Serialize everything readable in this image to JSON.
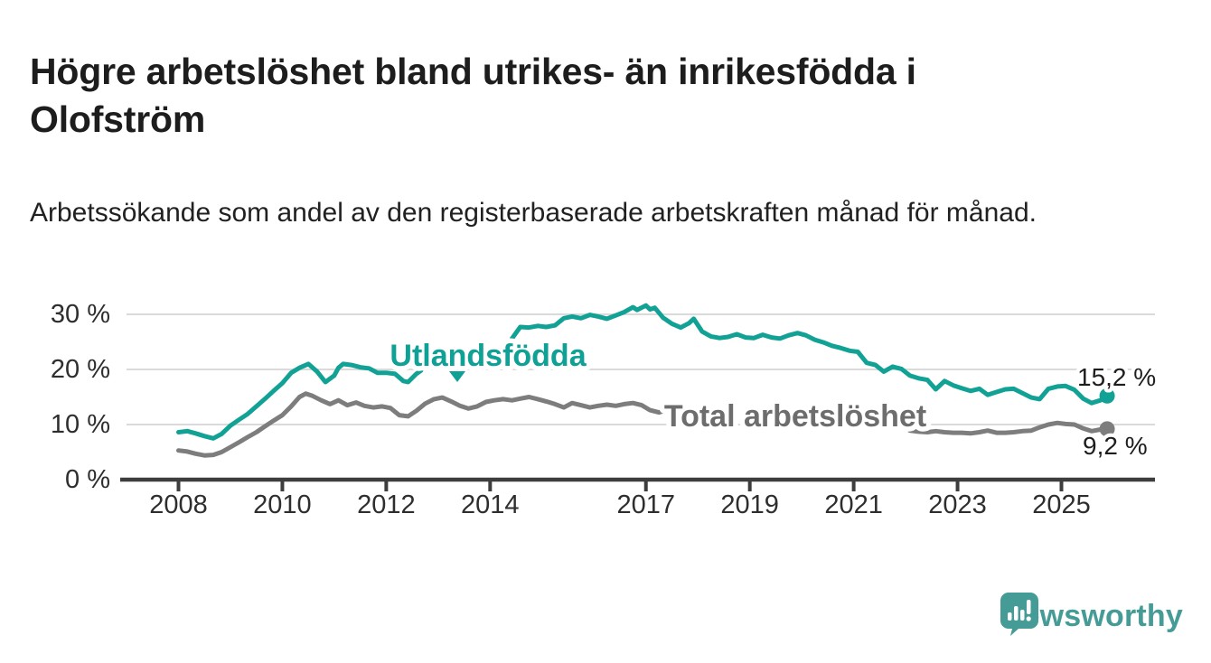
{
  "header": {
    "title": "Högre arbetslöshet bland utrikes- än inrikesfödda i Olofström",
    "subtitle": "Arbetssökande som andel av den registerbaserade arbetskraften månad för månad."
  },
  "colors": {
    "teal_line": "#12a195",
    "teal_label": "#0fa096",
    "gray_line": "#7d7d7d",
    "gray_label": "#6d6d6d",
    "axis": "#3d3d3d",
    "grid": "#dadada",
    "tick_text": "#2e2e2e",
    "logo_teal": "#459b96"
  },
  "footer": {
    "brand": "Newsworthy",
    "logo_icon": "newsworthy-speech-bubble-bar-chart-icon"
  },
  "chart_data": {
    "type": "line",
    "unit": "%",
    "title": "Högre arbetslöshet bland utrikes- än inrikesfödda i Olofström",
    "subtitle": "Arbetssökande som andel av den registerbaserade arbetskraften månad för månad.",
    "x_range": [
      2008.0,
      2025.88
    ],
    "ylim": [
      0,
      33
    ],
    "grid": "horizontal",
    "x_axis": {
      "ticks": [
        2008,
        2010,
        2012,
        2014,
        2017,
        2019,
        2021,
        2023,
        2025
      ]
    },
    "y_axis": {
      "ticks": [
        0,
        10,
        20,
        30
      ],
      "tick_labels": [
        "0 %",
        "10 %",
        "20 %",
        "30 %"
      ]
    },
    "series": [
      {
        "name": "Utlandsfödda",
        "color": "#12a195",
        "end_value": 15.2,
        "end_label": "15,2 %",
        "note": "line hidden behind inline series label between 2012.7 and 2014.4",
        "segments": [
          [
            [
              2008.0,
              8.6
            ],
            [
              2008.17,
              8.8
            ],
            [
              2008.33,
              8.4
            ],
            [
              2008.5,
              7.9
            ],
            [
              2008.67,
              7.5
            ],
            [
              2008.83,
              8.3
            ],
            [
              2009.0,
              9.8
            ],
            [
              2009.17,
              10.9
            ],
            [
              2009.33,
              11.9
            ],
            [
              2009.5,
              13.3
            ],
            [
              2009.67,
              14.7
            ],
            [
              2009.83,
              16.1
            ],
            [
              2010.0,
              17.5
            ],
            [
              2010.17,
              19.4
            ],
            [
              2010.33,
              20.3
            ],
            [
              2010.5,
              21.0
            ],
            [
              2010.67,
              19.6
            ],
            [
              2010.83,
              17.7
            ],
            [
              2011.0,
              18.9
            ],
            [
              2011.08,
              20.3
            ],
            [
              2011.17,
              21.0
            ],
            [
              2011.33,
              20.8
            ],
            [
              2011.5,
              20.4
            ],
            [
              2011.67,
              20.2
            ],
            [
              2011.83,
              19.4
            ],
            [
              2012.0,
              19.4
            ],
            [
              2012.17,
              19.2
            ],
            [
              2012.33,
              17.9
            ],
            [
              2012.42,
              17.7
            ],
            [
              2012.58,
              19.2
            ],
            [
              2012.67,
              19.8
            ]
          ],
          [
            [
              2014.42,
              25.6
            ],
            [
              2014.58,
              27.7
            ],
            [
              2014.75,
              27.6
            ],
            [
              2014.92,
              27.9
            ],
            [
              2015.08,
              27.7
            ],
            [
              2015.25,
              28.0
            ],
            [
              2015.42,
              29.3
            ],
            [
              2015.58,
              29.6
            ],
            [
              2015.75,
              29.3
            ],
            [
              2015.92,
              29.9
            ],
            [
              2016.08,
              29.6
            ],
            [
              2016.25,
              29.2
            ],
            [
              2016.42,
              29.8
            ],
            [
              2016.58,
              30.4
            ],
            [
              2016.75,
              31.3
            ],
            [
              2016.83,
              30.8
            ],
            [
              2017.0,
              31.6
            ],
            [
              2017.08,
              30.9
            ],
            [
              2017.17,
              31.2
            ],
            [
              2017.33,
              29.4
            ],
            [
              2017.5,
              28.3
            ],
            [
              2017.67,
              27.6
            ],
            [
              2017.83,
              28.4
            ],
            [
              2017.92,
              29.2
            ],
            [
              2018.08,
              26.9
            ],
            [
              2018.25,
              26.0
            ],
            [
              2018.42,
              25.7
            ],
            [
              2018.58,
              25.9
            ],
            [
              2018.75,
              26.4
            ],
            [
              2018.92,
              25.8
            ],
            [
              2019.08,
              25.7
            ],
            [
              2019.25,
              26.3
            ],
            [
              2019.42,
              25.8
            ],
            [
              2019.58,
              25.6
            ],
            [
              2019.75,
              26.2
            ],
            [
              2019.92,
              26.6
            ],
            [
              2020.08,
              26.2
            ],
            [
              2020.25,
              25.4
            ],
            [
              2020.42,
              24.9
            ],
            [
              2020.58,
              24.3
            ],
            [
              2020.75,
              23.9
            ],
            [
              2020.92,
              23.4
            ],
            [
              2021.08,
              23.2
            ],
            [
              2021.25,
              21.2
            ],
            [
              2021.42,
              20.8
            ],
            [
              2021.58,
              19.6
            ],
            [
              2021.75,
              20.5
            ],
            [
              2021.92,
              20.1
            ],
            [
              2022.08,
              18.9
            ],
            [
              2022.25,
              18.4
            ],
            [
              2022.42,
              18.1
            ],
            [
              2022.58,
              16.4
            ],
            [
              2022.75,
              17.9
            ],
            [
              2022.92,
              17.1
            ],
            [
              2023.08,
              16.6
            ],
            [
              2023.25,
              16.1
            ],
            [
              2023.42,
              16.5
            ],
            [
              2023.58,
              15.4
            ],
            [
              2023.75,
              15.9
            ],
            [
              2023.92,
              16.4
            ],
            [
              2024.08,
              16.5
            ],
            [
              2024.25,
              15.7
            ],
            [
              2024.42,
              14.9
            ],
            [
              2024.58,
              14.6
            ],
            [
              2024.75,
              16.5
            ],
            [
              2024.92,
              16.9
            ],
            [
              2025.08,
              17.0
            ],
            [
              2025.25,
              16.3
            ],
            [
              2025.42,
              14.7
            ],
            [
              2025.58,
              13.9
            ],
            [
              2025.75,
              14.4
            ],
            [
              2025.88,
              15.2
            ]
          ]
        ]
      },
      {
        "name": "Total arbetslöshet",
        "color": "#7d7d7d",
        "end_value": 9.2,
        "end_label": "9,2 %",
        "note": "line hidden behind inline series label between 2017.6 and 2022.1",
        "segments": [
          [
            [
              2008.0,
              5.3
            ],
            [
              2008.17,
              5.1
            ],
            [
              2008.33,
              4.7
            ],
            [
              2008.5,
              4.4
            ],
            [
              2008.67,
              4.5
            ],
            [
              2008.83,
              5.0
            ],
            [
              2009.0,
              5.9
            ],
            [
              2009.17,
              6.8
            ],
            [
              2009.33,
              7.7
            ],
            [
              2009.5,
              8.6
            ],
            [
              2009.67,
              9.7
            ],
            [
              2009.83,
              10.7
            ],
            [
              2010.0,
              11.7
            ],
            [
              2010.17,
              13.3
            ],
            [
              2010.33,
              15.0
            ],
            [
              2010.45,
              15.6
            ],
            [
              2010.58,
              15.2
            ],
            [
              2010.75,
              14.4
            ],
            [
              2010.92,
              13.7
            ],
            [
              2011.08,
              14.4
            ],
            [
              2011.25,
              13.5
            ],
            [
              2011.42,
              14.0
            ],
            [
              2011.58,
              13.4
            ],
            [
              2011.75,
              13.1
            ],
            [
              2011.92,
              13.3
            ],
            [
              2012.08,
              13.0
            ],
            [
              2012.25,
              11.7
            ],
            [
              2012.42,
              11.5
            ],
            [
              2012.58,
              12.5
            ],
            [
              2012.75,
              13.8
            ],
            [
              2012.92,
              14.6
            ],
            [
              2013.08,
              14.9
            ],
            [
              2013.25,
              14.2
            ],
            [
              2013.42,
              13.4
            ],
            [
              2013.58,
              12.9
            ],
            [
              2013.75,
              13.3
            ],
            [
              2013.92,
              14.1
            ],
            [
              2014.08,
              14.4
            ],
            [
              2014.25,
              14.6
            ],
            [
              2014.42,
              14.4
            ],
            [
              2014.58,
              14.7
            ],
            [
              2014.75,
              15.0
            ],
            [
              2014.92,
              14.6
            ],
            [
              2015.08,
              14.2
            ],
            [
              2015.25,
              13.7
            ],
            [
              2015.42,
              13.1
            ],
            [
              2015.58,
              13.9
            ],
            [
              2015.75,
              13.5
            ],
            [
              2015.92,
              13.1
            ],
            [
              2016.08,
              13.4
            ],
            [
              2016.25,
              13.6
            ],
            [
              2016.42,
              13.4
            ],
            [
              2016.58,
              13.7
            ],
            [
              2016.75,
              13.9
            ],
            [
              2016.92,
              13.5
            ],
            [
              2017.08,
              12.6
            ],
            [
              2017.25,
              12.2
            ],
            [
              2017.42,
              12.7
            ],
            [
              2017.58,
              11.6
            ]
          ],
          [
            [
              2022.08,
              8.9
            ],
            [
              2022.25,
              8.7
            ],
            [
              2022.42,
              8.6
            ],
            [
              2022.58,
              8.8
            ],
            [
              2022.75,
              8.6
            ],
            [
              2022.92,
              8.5
            ],
            [
              2023.08,
              8.5
            ],
            [
              2023.25,
              8.4
            ],
            [
              2023.42,
              8.6
            ],
            [
              2023.58,
              8.9
            ],
            [
              2023.75,
              8.5
            ],
            [
              2023.92,
              8.5
            ],
            [
              2024.08,
              8.6
            ],
            [
              2024.25,
              8.8
            ],
            [
              2024.42,
              8.9
            ],
            [
              2024.58,
              9.5
            ],
            [
              2024.75,
              10.0
            ],
            [
              2024.92,
              10.3
            ],
            [
              2025.08,
              10.1
            ],
            [
              2025.25,
              10.0
            ],
            [
              2025.42,
              9.3
            ],
            [
              2025.58,
              8.8
            ],
            [
              2025.75,
              9.1
            ],
            [
              2025.88,
              9.2
            ]
          ]
        ]
      }
    ],
    "annotations": {
      "series_label_1": "Utlandsfödda",
      "series_label_1_marker": "triangle-down",
      "series_label_2": "Total arbetslöshet",
      "end_label_1": "15,2 %",
      "end_label_2": "9,2 %"
    },
    "legend_position": "inline-labels"
  }
}
